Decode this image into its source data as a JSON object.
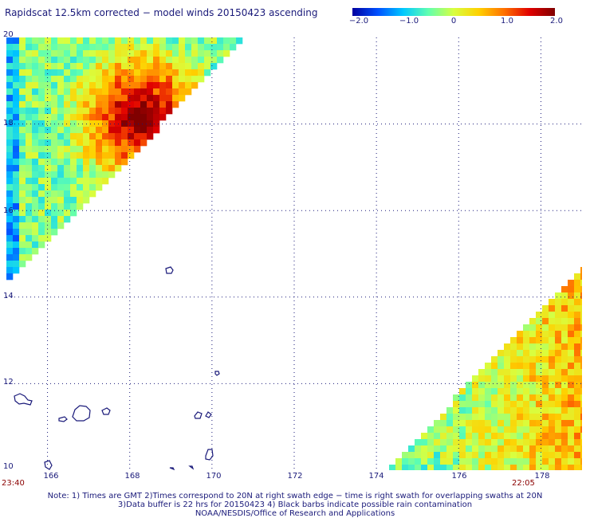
{
  "title": "Rapidscat 12.5km corrected − model winds 20150423 ascending",
  "colorbar": {
    "ticks": [
      "−2.0",
      "−1.0",
      "0",
      "1.0",
      "2.0"
    ],
    "values": [
      -2.0,
      -1.0,
      0,
      1.0,
      2.0
    ],
    "colors": [
      "#0000a0",
      "#0050ff",
      "#00c8ff",
      "#60ffb0",
      "#d8ff40",
      "#ffd000",
      "#ff7000",
      "#e00000",
      "#800000"
    ]
  },
  "map": {
    "lon_range": [
      165,
      179
    ],
    "lat_range": [
      10,
      20
    ],
    "lon_labels": [
      "166",
      "168",
      "170",
      "172",
      "174",
      "176",
      "178"
    ],
    "lat_labels": [
      "20",
      "18",
      "16",
      "14",
      "12",
      "10"
    ],
    "grid": true,
    "grid_color": "#1a1a7a",
    "coast_color": "#1a1a7a"
  },
  "times": {
    "left": "23:40",
    "right": "22:05"
  },
  "notes": [
    "Note: 1) Times are GMT 2)Times correspond to 20N at right swath edge − time is right swath for overlapping swaths at 20N",
    "3)Data buffer is 22 hrs for 20150423 4) Black barbs indicate possible rain contamination",
    "NOAA/NESDIS/Office of Research and Applications"
  ]
}
